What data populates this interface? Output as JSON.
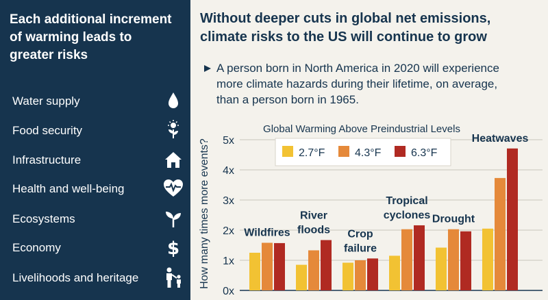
{
  "left_panel": {
    "title_lines": [
      "Each additional increment",
      "of warming leads to",
      "greater risks"
    ],
    "items": [
      {
        "label": "Water supply",
        "icon": "water-drop-icon"
      },
      {
        "label": "Food security",
        "icon": "sprout-sun-icon"
      },
      {
        "label": "Infrastructure",
        "icon": "house-icon"
      },
      {
        "label": "Health and well-being",
        "icon": "heart-pulse-icon"
      },
      {
        "label": "Ecosystems",
        "icon": "seedling-icon"
      },
      {
        "label": "Economy",
        "icon": "dollar-icon"
      },
      {
        "label": "Livelihoods and heritage",
        "icon": "family-icon"
      }
    ]
  },
  "right_panel": {
    "title_lines": [
      "Without deeper cuts in global net emissions,",
      "climate risks to the US will continue to grow"
    ],
    "statement_lines": [
      "A person born in North America in 2020 will experience",
      "more climate hazards during their lifetime, on average,",
      "than a person born in 1965."
    ]
  },
  "colors": {
    "panel_dark": "#16344e",
    "text": "#16344e",
    "s1": "#f2c233",
    "s2": "#e5893a",
    "s3": "#b02a22",
    "background": "#f4f2ec"
  },
  "chart_data": {
    "type": "bar",
    "title": "Global Warming Above Preindustrial Levels",
    "ylabel": "How many times more events?",
    "xlabel": "",
    "ylim": [
      0,
      5
    ],
    "yticks": [
      "0x",
      "1x",
      "2x",
      "3x",
      "4x",
      "5x"
    ],
    "categories": [
      {
        "lines": [
          "Wildfires"
        ]
      },
      {
        "lines": [
          "River",
          "floods"
        ]
      },
      {
        "lines": [
          "Crop",
          "failure"
        ]
      },
      {
        "lines": [
          "Tropical",
          "cyclones"
        ]
      },
      {
        "lines": [
          "Drought"
        ]
      },
      {
        "lines": [
          "Heatwaves"
        ]
      }
    ],
    "series": [
      {
        "name": "2.7°F",
        "values": [
          1.25,
          0.85,
          0.92,
          1.15,
          1.42,
          2.05
        ]
      },
      {
        "name": "4.3°F",
        "values": [
          1.58,
          1.33,
          1.0,
          2.03,
          2.03,
          3.73
        ]
      },
      {
        "name": "6.3°F",
        "values": [
          1.57,
          1.67,
          1.06,
          2.16,
          1.96,
          4.71
        ]
      }
    ],
    "legend_position": "top"
  }
}
